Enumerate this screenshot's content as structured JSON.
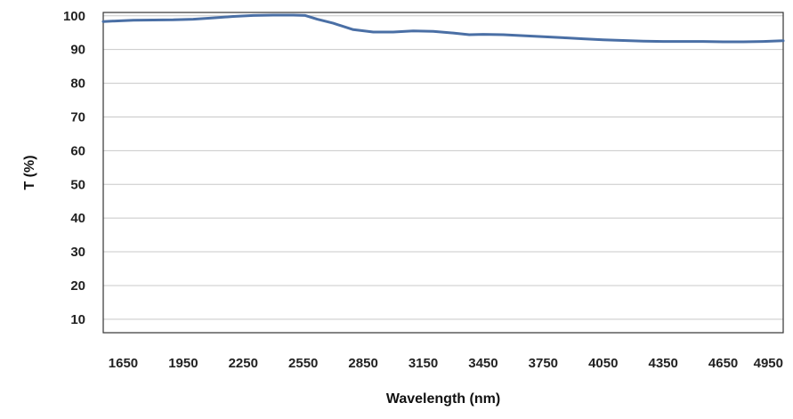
{
  "chart_data": {
    "type": "line",
    "title": "",
    "xlabel": "Wavelength (nm)",
    "ylabel": "T (%)",
    "xlim": [
      1550,
      4950
    ],
    "ylim": [
      6,
      101
    ],
    "x_ticks": [
      1650,
      1950,
      2250,
      2550,
      2850,
      3150,
      3450,
      3750,
      4050,
      4350,
      4650,
      4950
    ],
    "y_ticks": [
      10,
      20,
      30,
      40,
      50,
      60,
      70,
      80,
      90,
      100
    ],
    "grid": true,
    "legend": "none",
    "line_color": "#4a6fa5",
    "series": [
      {
        "x": [
          1550,
          1700,
          1900,
          2000,
          2100,
          2200,
          2300,
          2400,
          2500,
          2560,
          2620,
          2700,
          2800,
          2900,
          3000,
          3100,
          3200,
          3300,
          3380,
          3450,
          3550,
          3650,
          3750,
          3850,
          3950,
          4050,
          4150,
          4250,
          4350,
          4450,
          4550,
          4650,
          4750,
          4850,
          4950
        ],
        "y": [
          98.3,
          98.7,
          98.8,
          99.0,
          99.4,
          99.8,
          100.1,
          100.2,
          100.2,
          100.1,
          99.0,
          97.8,
          95.9,
          95.2,
          95.2,
          95.5,
          95.4,
          94.9,
          94.4,
          94.5,
          94.4,
          94.1,
          93.8,
          93.5,
          93.2,
          92.9,
          92.7,
          92.5,
          92.4,
          92.4,
          92.4,
          92.3,
          92.3,
          92.4,
          92.6
        ]
      }
    ]
  }
}
